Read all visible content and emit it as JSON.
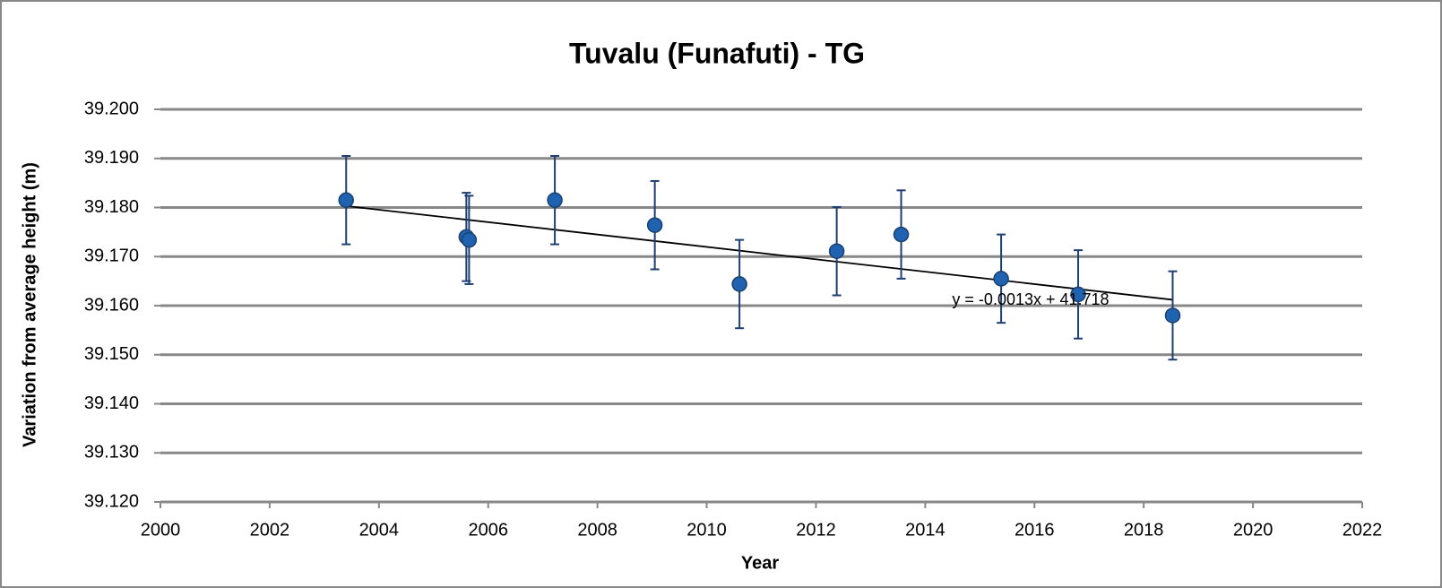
{
  "chart_data": {
    "type": "scatter",
    "title": "Tuvalu (Funafuti) - TG",
    "x_label": "Year",
    "y_label": "Variation from average height (m)",
    "x": [
      2003.4,
      2005.6,
      2005.65,
      2007.22,
      2009.05,
      2010.6,
      2012.38,
      2013.56,
      2015.39,
      2016.8,
      2018.53
    ],
    "values": [
      39.1815,
      39.174,
      39.1734,
      39.1815,
      39.1764,
      39.1644,
      39.1711,
      39.1745,
      39.1655,
      39.1623,
      39.158
    ],
    "errors": [
      0.009,
      0.009,
      0.009,
      0.009,
      0.009,
      0.009,
      0.009,
      0.009,
      0.009,
      0.009,
      0.009
    ],
    "color": "#1f63b0",
    "error_color": "#1f3f73",
    "trendline": {
      "x": [
        2003.4,
        2018.53
      ],
      "values": [
        39.1803,
        39.1612
      ],
      "label": "y = -0.0013x + 41.718",
      "color": "#000000"
    },
    "xlim": [
      2000,
      2022
    ],
    "xticks": [
      2000,
      2002,
      2004,
      2006,
      2008,
      2010,
      2012,
      2014,
      2016,
      2018,
      2020,
      2022
    ],
    "ylim": [
      39.12,
      39.2
    ],
    "yticks": [
      {
        "value": 39.12,
        "label": "39.120"
      },
      {
        "value": 39.13,
        "label": "39.130"
      },
      {
        "value": 39.14,
        "label": "39.140"
      },
      {
        "value": 39.15,
        "label": "39.150"
      },
      {
        "value": 39.16,
        "label": "39.160"
      },
      {
        "value": 39.17,
        "label": "39.170"
      },
      {
        "value": 39.18,
        "label": "39.180"
      },
      {
        "value": 39.19,
        "label": "39.190"
      },
      {
        "value": 39.2,
        "label": "39.200"
      }
    ],
    "grid": true
  }
}
